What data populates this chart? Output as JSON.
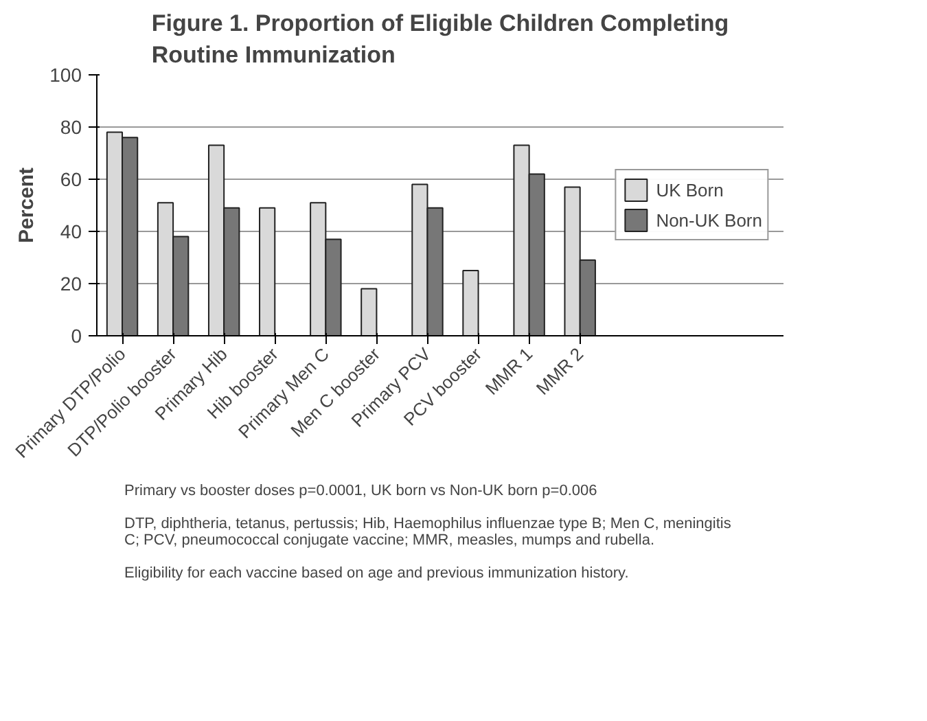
{
  "chart_data": {
    "type": "bar",
    "title": "Figure 1. Proportion of Eligible Children Completing Routine Immunization",
    "ylabel": "Percent",
    "categories": [
      "Primary DTP/Polio",
      "DTP/Polio booster",
      "Primary Hib",
      "Hib booster",
      "Primary Men C",
      "Men C booster",
      "Primary PCV",
      "PCV booster",
      "MMR 1",
      "MMR 2"
    ],
    "series": [
      {
        "name": "UK Born",
        "color": "#d9d9d9",
        "values": [
          78,
          51,
          73,
          49,
          51,
          18,
          58,
          25,
          73,
          57
        ]
      },
      {
        "name": "Non-UK Born",
        "color": "#777777",
        "values": [
          76,
          38,
          49,
          null,
          37,
          null,
          49,
          null,
          62,
          29
        ]
      }
    ],
    "ylim": [
      0,
      100
    ],
    "yticks": [
      0,
      20,
      40,
      60,
      80,
      100
    ],
    "grid": "y",
    "legend": "right",
    "annotations": [
      "Primary vs booster doses p=0.0001, UK born vs Non-UK born p=0.006",
      "DTP, diphtheria, tetanus, pertussis; Hib, Haemophilus influenzae type B; Men C, meningitis C; PCV, pneumococcal conjugate vaccine; MMR, measles, mumps and rubella.",
      "Eligibility for each vaccine based on age and previous immunization history."
    ]
  }
}
